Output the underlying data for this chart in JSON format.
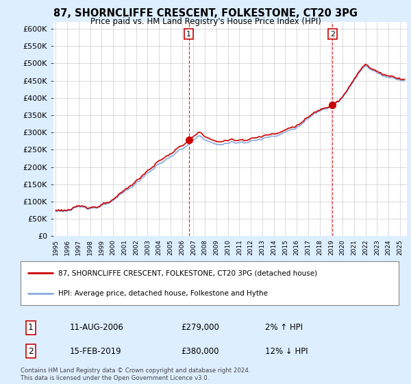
{
  "title": "87, SHORNCLIFFE CRESCENT, FOLKESTONE, CT20 3PG",
  "subtitle": "Price paid vs. HM Land Registry's House Price Index (HPI)",
  "ytick_vals": [
    0,
    50000,
    100000,
    150000,
    200000,
    250000,
    300000,
    350000,
    400000,
    450000,
    500000,
    550000,
    600000
  ],
  "ylim": [
    0,
    620000
  ],
  "xlim_start": 1994.8,
  "xlim_end": 2025.6,
  "purchase1_x": 2006.6,
  "purchase1_y": 279000,
  "purchase2_x": 2019.12,
  "purchase2_y": 380000,
  "legend_entry1": "87, SHORNCLIFFE CRESCENT, FOLKESTONE, CT20 3PG (detached house)",
  "legend_entry2": "HPI: Average price, detached house, Folkestone and Hythe",
  "table_row1_num": "1",
  "table_row1_date": "11-AUG-2006",
  "table_row1_price": "£279,000",
  "table_row1_hpi": "2% ↑ HPI",
  "table_row2_num": "2",
  "table_row2_date": "15-FEB-2019",
  "table_row2_price": "£380,000",
  "table_row2_hpi": "12% ↓ HPI",
  "footer": "Contains HM Land Registry data © Crown copyright and database right 2024.\nThis data is licensed under the Open Government Licence v3.0.",
  "line_color_property": "#cc0000",
  "line_color_hpi": "#88aadd",
  "bg_color": "#ddeeff",
  "plot_bg": "#ffffff",
  "grid_color": "#cccccc",
  "marker_color": "#cc0000"
}
